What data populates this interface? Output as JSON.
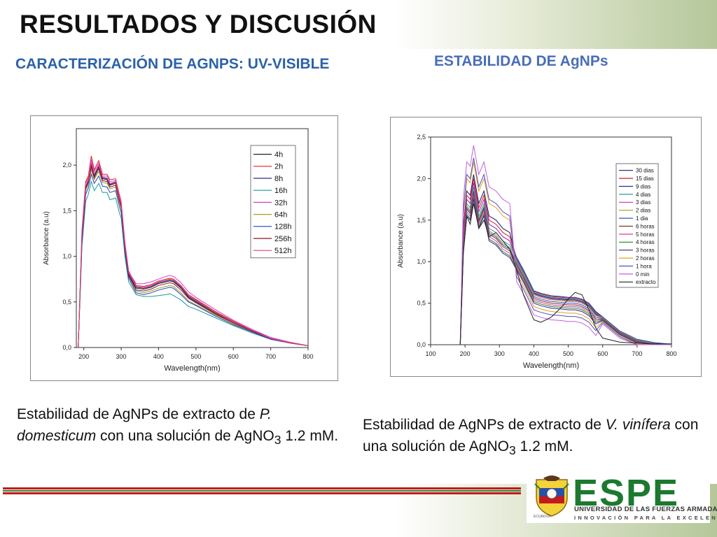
{
  "header": {
    "title": "RESULTADOS Y DISCUSIÓN",
    "subtitle_left": "CARACTERIZACIÓN DE AGNPS: UV-VISIBLE",
    "subtitle_right": "ESTABILIDAD DE AgNPs"
  },
  "captions": {
    "left": {
      "p1": "Estabilidad de AgNPs de extracto de ",
      "species": "P. domesticum",
      "p2": " con una solución de AgNO",
      "sub": "3",
      "p3": " 1.2 mM."
    },
    "right": {
      "p1": "Estabilidad de AgNPs de extracto de ",
      "species": "V. vinífera",
      "p2": " con una solución de AgNO",
      "sub": "3",
      "p3": "  1.2 mM."
    }
  },
  "logo": {
    "name": "ESPE",
    "university": "UNIVERSIDAD DE LAS FUERZAS ARMADAS",
    "motto": "INNOVACIÓN PARA LA EXCELENCIA",
    "seal_text": "ECUADOR",
    "colors": {
      "green": "#1b7a2f",
      "red": "#c41a1a"
    }
  },
  "chart_data": [
    {
      "type": "line",
      "xlabel": "Wavelength(nm)",
      "ylabel": "Absorbance (a.u)",
      "xlim": [
        180,
        800
      ],
      "ylim": [
        0,
        2.4
      ],
      "xticks": [
        200,
        300,
        400,
        500,
        600,
        700,
        800
      ],
      "yticks": [
        "0,0",
        "0,5",
        "1,0",
        "1,5",
        "2,0"
      ],
      "ytick_values": [
        0,
        0.5,
        1.0,
        1.5,
        2.0
      ],
      "legend_position": "top-right",
      "x": [
        185,
        195,
        205,
        212,
        220,
        228,
        240,
        250,
        262,
        270,
        285,
        295,
        300,
        310,
        320,
        340,
        360,
        380,
        400,
        420,
        430,
        440,
        460,
        480,
        500,
        550,
        600,
        650,
        700,
        750,
        800
      ],
      "series": [
        {
          "name": "4h",
          "color": "#222222",
          "values": [
            0.0,
            1.2,
            1.75,
            1.82,
            2.0,
            1.88,
            1.98,
            1.85,
            1.84,
            1.78,
            1.8,
            1.62,
            1.55,
            1.1,
            0.8,
            0.65,
            0.64,
            0.66,
            0.7,
            0.72,
            0.73,
            0.72,
            0.65,
            0.55,
            0.5,
            0.38,
            0.27,
            0.18,
            0.1,
            0.05,
            0.02
          ]
        },
        {
          "name": "2h",
          "color": "#e02020",
          "values": [
            0.0,
            1.28,
            1.82,
            1.88,
            2.1,
            1.95,
            2.05,
            1.9,
            1.9,
            1.84,
            1.85,
            1.68,
            1.6,
            1.15,
            0.84,
            0.68,
            0.67,
            0.69,
            0.73,
            0.75,
            0.76,
            0.75,
            0.68,
            0.58,
            0.53,
            0.4,
            0.29,
            0.19,
            0.11,
            0.06,
            0.02
          ]
        },
        {
          "name": "8h",
          "color": "#2a2a8a",
          "values": [
            0.0,
            1.22,
            1.76,
            1.83,
            2.02,
            1.89,
            1.99,
            1.86,
            1.85,
            1.79,
            1.81,
            1.63,
            1.56,
            1.11,
            0.81,
            0.66,
            0.65,
            0.67,
            0.71,
            0.73,
            0.74,
            0.73,
            0.66,
            0.56,
            0.51,
            0.39,
            0.28,
            0.18,
            0.1,
            0.05,
            0.02
          ]
        },
        {
          "name": "16h",
          "color": "#1a9a9a",
          "values": [
            0.0,
            1.1,
            1.6,
            1.68,
            1.82,
            1.72,
            1.8,
            1.7,
            1.7,
            1.62,
            1.64,
            1.48,
            1.42,
            1.0,
            0.72,
            0.58,
            0.56,
            0.56,
            0.57,
            0.58,
            0.59,
            0.57,
            0.52,
            0.45,
            0.42,
            0.33,
            0.24,
            0.16,
            0.09,
            0.05,
            0.02
          ]
        },
        {
          "name": "32h",
          "color": "#d040d0",
          "values": [
            0.0,
            1.25,
            1.8,
            1.86,
            2.06,
            1.93,
            2.02,
            1.88,
            1.88,
            1.82,
            1.83,
            1.66,
            1.58,
            1.14,
            0.83,
            0.7,
            0.7,
            0.72,
            0.75,
            0.78,
            0.79,
            0.78,
            0.71,
            0.61,
            0.55,
            0.42,
            0.3,
            0.2,
            0.11,
            0.06,
            0.02
          ]
        },
        {
          "name": "64h",
          "color": "#a0a020",
          "values": [
            0.0,
            1.18,
            1.72,
            1.79,
            1.95,
            1.84,
            1.93,
            1.81,
            1.8,
            1.74,
            1.76,
            1.59,
            1.52,
            1.08,
            0.78,
            0.62,
            0.6,
            0.62,
            0.65,
            0.67,
            0.68,
            0.67,
            0.6,
            0.51,
            0.47,
            0.36,
            0.26,
            0.17,
            0.1,
            0.05,
            0.02
          ]
        },
        {
          "name": "128h",
          "color": "#2040c0",
          "values": [
            0.0,
            1.15,
            1.68,
            1.75,
            1.9,
            1.8,
            1.88,
            1.77,
            1.76,
            1.7,
            1.72,
            1.55,
            1.48,
            1.05,
            0.76,
            0.6,
            0.58,
            0.6,
            0.63,
            0.65,
            0.66,
            0.65,
            0.58,
            0.5,
            0.46,
            0.35,
            0.25,
            0.17,
            0.09,
            0.05,
            0.02
          ]
        },
        {
          "name": "256h",
          "color": "#8a1030",
          "values": [
            0.0,
            1.2,
            1.74,
            1.81,
            1.98,
            1.86,
            1.96,
            1.83,
            1.82,
            1.76,
            1.78,
            1.61,
            1.54,
            1.09,
            0.79,
            0.63,
            0.62,
            0.64,
            0.68,
            0.7,
            0.71,
            0.7,
            0.63,
            0.54,
            0.49,
            0.37,
            0.27,
            0.18,
            0.1,
            0.05,
            0.02
          ]
        },
        {
          "name": "512h",
          "color": "#e0407a",
          "values": [
            0.0,
            1.23,
            1.77,
            1.84,
            2.03,
            1.9,
            2.0,
            1.87,
            1.86,
            1.8,
            1.82,
            1.64,
            1.57,
            1.12,
            0.82,
            0.67,
            0.66,
            0.68,
            0.72,
            0.74,
            0.75,
            0.74,
            0.67,
            0.57,
            0.52,
            0.39,
            0.28,
            0.19,
            0.1,
            0.05,
            0.02
          ]
        }
      ]
    },
    {
      "type": "line",
      "xlabel": "Wavelength(nm)",
      "ylabel": "Absorbance (a.u)",
      "xlim": [
        100,
        800
      ],
      "ylim": [
        0,
        2.5
      ],
      "xticks": [
        100,
        200,
        300,
        400,
        500,
        600,
        700,
        800
      ],
      "yticks": [
        "0,0",
        "0,5",
        "1,0",
        "1,5",
        "2,0",
        "2,5"
      ],
      "ytick_values": [
        0,
        0.5,
        1.0,
        1.5,
        2.0,
        2.5
      ],
      "legend_position": "top-right",
      "x": [
        186,
        195,
        205,
        215,
        225,
        240,
        255,
        270,
        290,
        310,
        330,
        350,
        370,
        400,
        420,
        450,
        480,
        500,
        520,
        540,
        560,
        580,
        600,
        650,
        700,
        750,
        800
      ],
      "series": [
        {
          "name": "30 dias",
          "color": "#1a1a6a",
          "offset": 0.1,
          "ldrop": 0.08
        },
        {
          "name": "15 dias",
          "color": "#d02020",
          "offset": 0.05,
          "ldrop": 0.06
        },
        {
          "name": "9 dias",
          "color": "#2a2aa0",
          "offset": 0.0,
          "ldrop": 0.05
        },
        {
          "name": "4 dias",
          "color": "#20a0a0",
          "offset": -0.05,
          "ldrop": 0.07
        },
        {
          "name": "3 dias",
          "color": "#c030c0",
          "offset": 0.0,
          "ldrop": 0.09
        },
        {
          "name": "2 dias",
          "color": "#a0a020",
          "offset": -0.08,
          "ldrop": 0.1
        },
        {
          "name": "1 dia",
          "color": "#3050c0",
          "offset": -0.1,
          "ldrop": 0.12
        },
        {
          "name": "6 horas",
          "color": "#803030",
          "offset": -0.12,
          "ldrop": 0.14
        },
        {
          "name": "5 horas",
          "color": "#d040a0",
          "offset": -0.15,
          "ldrop": 0.16
        },
        {
          "name": "4 horas",
          "color": "#208030",
          "offset": -0.18,
          "ldrop": 0.18
        },
        {
          "name": "3 horas",
          "color": "#3a2a80",
          "offset": -0.2,
          "ldrop": 0.2
        },
        {
          "name": "2 horas",
          "color": "#e0a020",
          "offset": 0.25,
          "ldrop": 0.24
        },
        {
          "name": "1 hora",
          "color": "#5050c0",
          "offset": 0.3,
          "ldrop": 0.28
        },
        {
          "name": "0 min",
          "color": "#c060e0",
          "offset": 0.45,
          "ldrop": 0.34
        },
        {
          "name": "extracto",
          "color": "#222222",
          "special": true
        }
      ],
      "base_values": [
        0.0,
        1.3,
        1.75,
        1.7,
        1.95,
        1.6,
        1.75,
        1.45,
        1.4,
        1.3,
        1.25,
        1.1,
        0.95,
        0.7,
        0.67,
        0.64,
        0.63,
        0.62,
        0.62,
        0.6,
        0.55,
        0.45,
        0.35,
        0.18,
        0.08,
        0.04,
        0.02
      ],
      "extracto_values": [
        0.0,
        1.1,
        1.55,
        1.45,
        1.7,
        1.4,
        1.5,
        1.3,
        1.35,
        1.25,
        1.15,
        0.9,
        0.6,
        0.3,
        0.27,
        0.33,
        0.45,
        0.55,
        0.63,
        0.6,
        0.42,
        0.2,
        0.08,
        0.03,
        0.02,
        0.01,
        0.01
      ]
    }
  ]
}
